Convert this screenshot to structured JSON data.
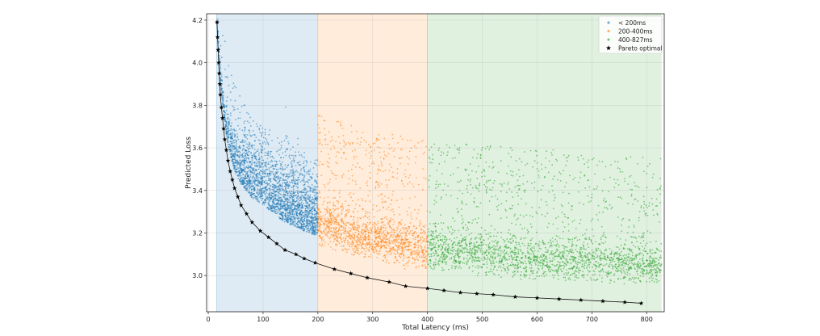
{
  "chart_data": {
    "type": "scatter",
    "xlabel": "Total Latency (ms)",
    "ylabel": "Predicted Loss",
    "xlim": [
      -3,
      832
    ],
    "ylim": [
      2.83,
      4.23
    ],
    "x_ticks": [
      0,
      100,
      200,
      300,
      400,
      500,
      600,
      700,
      800
    ],
    "y_ticks": [
      3.0,
      3.2,
      3.4,
      3.6,
      3.8,
      4.0,
      4.2
    ],
    "grid": true,
    "legend_position": "top-right",
    "shaded_regions": [
      {
        "x_start": 15,
        "x_end": 200,
        "color": "#1f77b4"
      },
      {
        "x_start": 200,
        "x_end": 400,
        "color": "#ff7f0e"
      },
      {
        "x_start": 400,
        "x_end": 827,
        "color": "#2ca02c"
      }
    ],
    "series": [
      {
        "name": "< 200ms",
        "color": "#1f77b4",
        "marker": "dot",
        "x_range": [
          15,
          200
        ]
      },
      {
        "name": "200-400ms",
        "color": "#ff7f0e",
        "marker": "dot",
        "x_range": [
          200,
          400
        ]
      },
      {
        "name": "400-827ms",
        "color": "#2ca02c",
        "marker": "dot",
        "x_range": [
          400,
          827
        ]
      },
      {
        "name": "Pareto optimal",
        "color": "#000000",
        "marker": "star",
        "x": [
          16,
          17,
          18,
          19,
          20,
          21,
          22,
          24,
          26,
          28,
          30,
          33,
          36,
          40,
          44,
          48,
          54,
          60,
          70,
          80,
          95,
          110,
          125,
          140,
          160,
          175,
          195,
          230,
          260,
          290,
          330,
          360,
          400,
          430,
          460,
          490,
          520,
          560,
          600,
          640,
          680,
          720,
          760,
          790
        ],
        "y": [
          4.19,
          4.12,
          4.06,
          4.0,
          3.95,
          3.9,
          3.85,
          3.79,
          3.74,
          3.69,
          3.64,
          3.59,
          3.54,
          3.49,
          3.45,
          3.41,
          3.37,
          3.33,
          3.29,
          3.25,
          3.21,
          3.18,
          3.15,
          3.12,
          3.1,
          3.08,
          3.06,
          3.03,
          3.01,
          2.99,
          2.97,
          2.95,
          2.94,
          2.93,
          2.92,
          2.915,
          2.91,
          2.9,
          2.895,
          2.89,
          2.885,
          2.88,
          2.875,
          2.87
        ]
      }
    ]
  }
}
